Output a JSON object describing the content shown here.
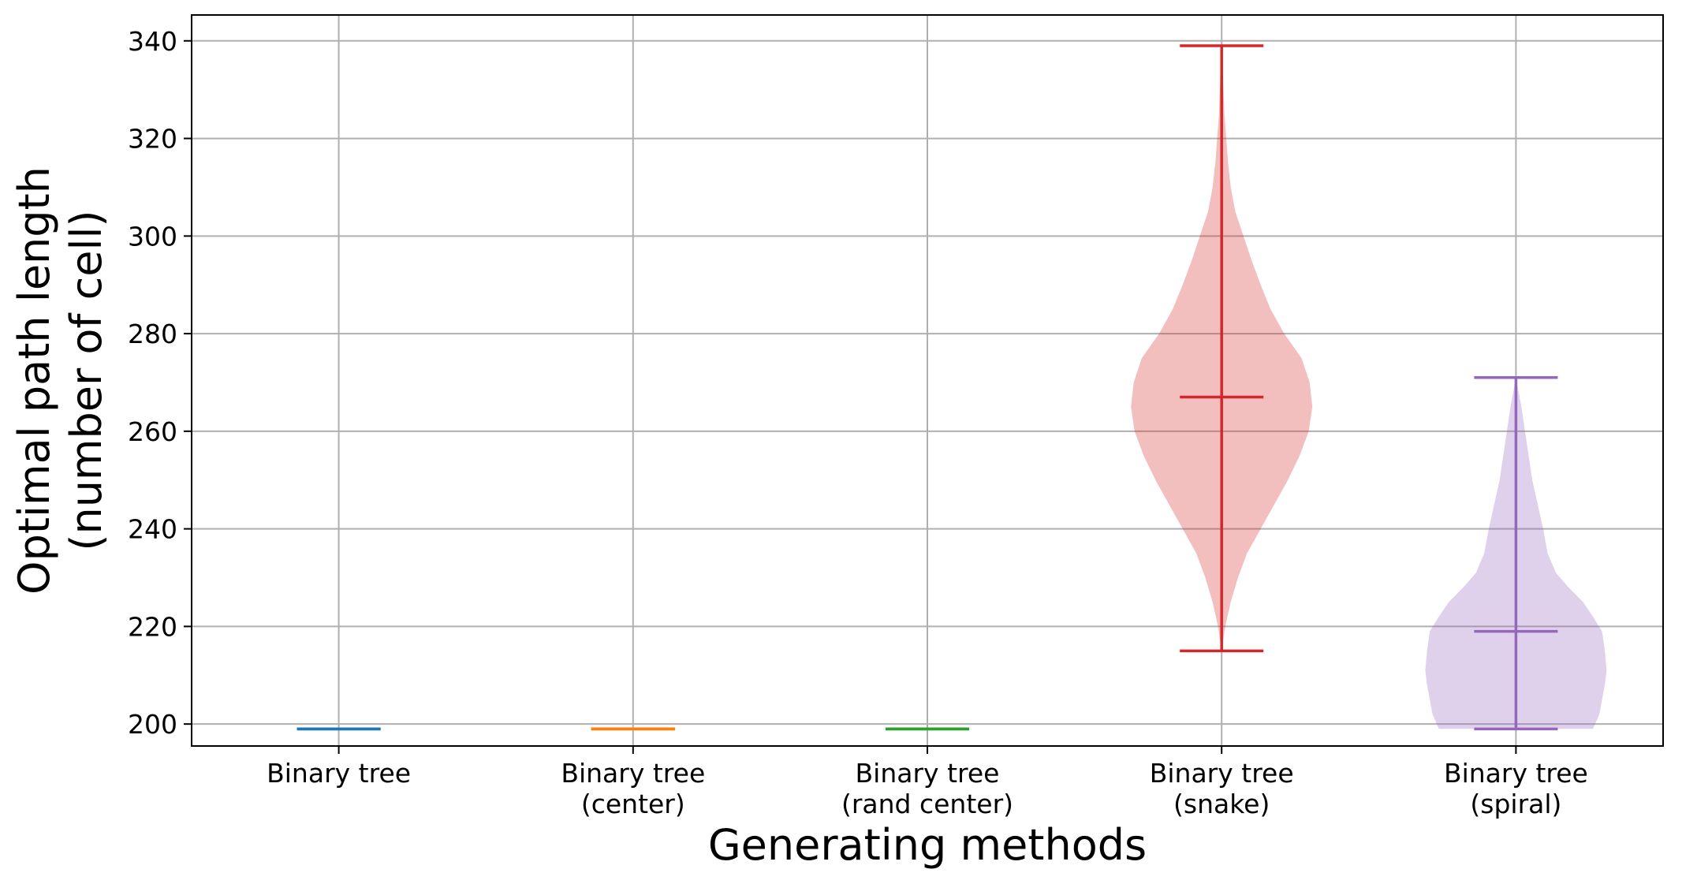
{
  "chart_data": {
    "type": "violin",
    "title": "",
    "xlabel": "Generating methods",
    "ylabel": [
      "Optimal path length",
      "(number of cell)"
    ],
    "ylim": [
      195.5,
      345.3
    ],
    "yticks": [
      200,
      220,
      240,
      260,
      280,
      300,
      320,
      340
    ],
    "grid": true,
    "categories": [
      [
        "Binary tree"
      ],
      [
        "Binary tree",
        "(center)"
      ],
      [
        "Binary tree",
        "(rand center)"
      ],
      [
        "Binary tree",
        "(snake)"
      ],
      [
        "Binary tree",
        "(spiral)"
      ]
    ],
    "series": [
      {
        "color": "#1f77b4",
        "min": 199,
        "median": 199,
        "max": 199,
        "density": []
      },
      {
        "color": "#ff7f0e",
        "min": 199,
        "median": 199,
        "max": 199,
        "density": []
      },
      {
        "color": "#2ca02c",
        "min": 199,
        "median": 199,
        "max": 199,
        "density": []
      },
      {
        "color": "#d62728",
        "min": 215,
        "median": 267,
        "max": 339,
        "density": [
          [
            215,
            0.0
          ],
          [
            220,
            0.04
          ],
          [
            225,
            0.1
          ],
          [
            230,
            0.18
          ],
          [
            235,
            0.28
          ],
          [
            240,
            0.43
          ],
          [
            245,
            0.58
          ],
          [
            250,
            0.73
          ],
          [
            255,
            0.86
          ],
          [
            260,
            0.96
          ],
          [
            265,
            1.0
          ],
          [
            270,
            0.97
          ],
          [
            275,
            0.88
          ],
          [
            280,
            0.69
          ],
          [
            285,
            0.54
          ],
          [
            290,
            0.43
          ],
          [
            295,
            0.33
          ],
          [
            300,
            0.24
          ],
          [
            305,
            0.15
          ],
          [
            310,
            0.1
          ],
          [
            315,
            0.07
          ],
          [
            320,
            0.05
          ],
          [
            325,
            0.03
          ],
          [
            330,
            0.02
          ],
          [
            335,
            0.01
          ],
          [
            339,
            0.0
          ]
        ]
      },
      {
        "color": "#9467bd",
        "min": 199,
        "median": 219,
        "max": 271,
        "density": [
          [
            199,
            0.85
          ],
          [
            202,
            0.92
          ],
          [
            205,
            0.95
          ],
          [
            208,
            0.98
          ],
          [
            211,
            1.0
          ],
          [
            215,
            0.98
          ],
          [
            219,
            0.95
          ],
          [
            222,
            0.85
          ],
          [
            225,
            0.74
          ],
          [
            228,
            0.58
          ],
          [
            231,
            0.44
          ],
          [
            235,
            0.35
          ],
          [
            240,
            0.3
          ],
          [
            245,
            0.24
          ],
          [
            250,
            0.18
          ],
          [
            255,
            0.14
          ],
          [
            260,
            0.1
          ],
          [
            265,
            0.06
          ],
          [
            268,
            0.03
          ],
          [
            271,
            0.0
          ]
        ]
      }
    ]
  }
}
